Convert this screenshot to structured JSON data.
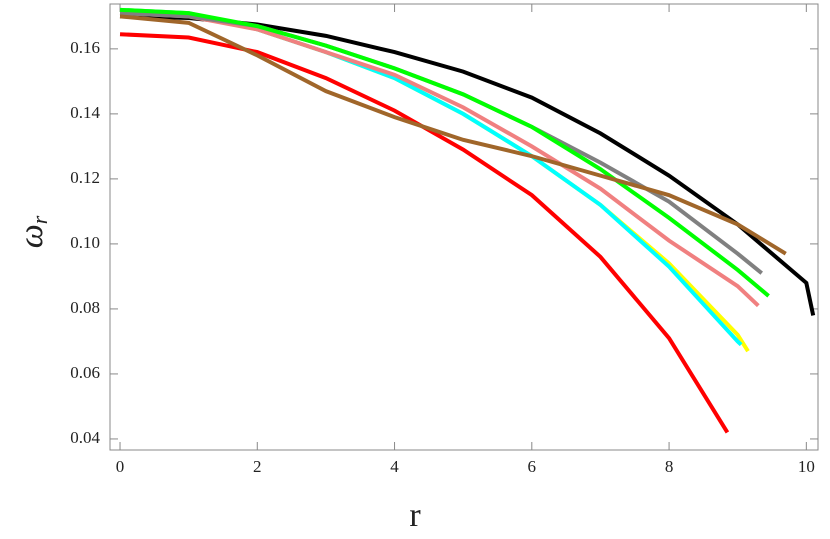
{
  "chart_data": {
    "type": "line",
    "xlabel": "r",
    "ylabel": "ω",
    "ylabel_subscript": "r",
    "xlim": [
      -0.146,
      10.17
    ],
    "ylim": [
      0.0366,
      0.1738
    ],
    "xticks": [
      0,
      2,
      4,
      6,
      8,
      10
    ],
    "yticks": [
      0.04,
      0.06,
      0.08,
      {
        "value": 0.1,
        "label": "0.10"
      },
      0.12,
      0.14,
      0.16
    ],
    "series": [
      {
        "color": "#000000",
        "x": [
          0,
          1,
          2,
          3,
          4,
          5,
          6,
          7,
          8,
          9,
          10,
          10.1
        ],
        "values": [
          0.17,
          0.1695,
          0.1675,
          0.164,
          0.159,
          0.153,
          0.145,
          0.134,
          0.121,
          0.106,
          0.088,
          0.078
        ]
      },
      {
        "color": "#ff0000",
        "x": [
          0,
          1,
          2,
          3,
          4,
          5,
          6,
          7,
          8,
          8.85
        ],
        "values": [
          0.1645,
          0.1635,
          0.159,
          0.151,
          0.141,
          0.129,
          0.115,
          0.096,
          0.071,
          0.042
        ]
      },
      {
        "color": "#ffff00",
        "x": [
          0,
          1,
          2,
          3,
          4,
          5,
          6,
          7,
          8,
          9,
          9.15
        ],
        "values": [
          0.172,
          0.171,
          0.166,
          0.159,
          0.151,
          0.14,
          0.127,
          0.112,
          0.094,
          0.072,
          0.067
        ]
      },
      {
        "color": "#00ffff",
        "x": [
          0,
          1,
          2,
          3,
          4,
          5,
          6,
          7,
          8,
          9,
          9.05
        ],
        "values": [
          0.172,
          0.171,
          0.166,
          0.159,
          0.151,
          0.14,
          0.127,
          0.112,
          0.093,
          0.07,
          0.069
        ]
      },
      {
        "color": "#f08080",
        "x": [
          0,
          1,
          2,
          3,
          4,
          5,
          6,
          7,
          8,
          9,
          9.3
        ],
        "values": [
          0.171,
          0.17,
          0.166,
          0.159,
          0.152,
          0.142,
          0.13,
          0.117,
          0.101,
          0.087,
          0.081
        ]
      },
      {
        "color": "#808080",
        "x": [
          0,
          1,
          2,
          3,
          4,
          5,
          6,
          7,
          8,
          9,
          9.35
        ],
        "values": [
          0.171,
          0.17,
          0.167,
          0.161,
          0.154,
          0.146,
          0.136,
          0.125,
          0.113,
          0.097,
          0.091
        ]
      },
      {
        "color": "#00ff00",
        "x": [
          0,
          1,
          2,
          3,
          4,
          5,
          6,
          7,
          8,
          9,
          9.45
        ],
        "values": [
          0.172,
          0.171,
          0.167,
          0.161,
          0.154,
          0.146,
          0.136,
          0.123,
          0.108,
          0.092,
          0.084
        ]
      },
      {
        "color": "#a0662a",
        "x": [
          0,
          1,
          2,
          3,
          4,
          5,
          6,
          7,
          8,
          9,
          9.7
        ],
        "values": [
          0.17,
          0.168,
          0.158,
          0.147,
          0.139,
          0.132,
          0.127,
          0.121,
          0.115,
          0.106,
          0.097
        ]
      }
    ]
  }
}
